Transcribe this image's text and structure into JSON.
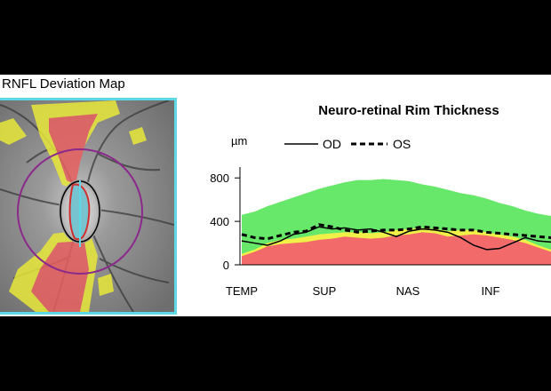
{
  "deviation_map": {
    "title": "RNFL Deviation Map"
  },
  "chart_data": {
    "type": "line",
    "title": "Neuro-retinal Rim Thickness",
    "ylabel": "µm",
    "ylim": [
      0,
      900
    ],
    "yticks": [
      0,
      400,
      800
    ],
    "xtick_labels": [
      "TEMP",
      "SUP",
      "NAS",
      "INF"
    ],
    "x": [
      0,
      15,
      30,
      45,
      60,
      75,
      90,
      105,
      120,
      135,
      150,
      165,
      180,
      195,
      210,
      225,
      240,
      255,
      270,
      285,
      300,
      315,
      330,
      345,
      360
    ],
    "normative_bands": {
      "red_upper": [
        80,
        120,
        170,
        190,
        200,
        210,
        230,
        240,
        260,
        250,
        240,
        250,
        270,
        280,
        300,
        290,
        260,
        270,
        280,
        270,
        250,
        230,
        200,
        160,
        120
      ],
      "yellow_upper": [
        100,
        140,
        200,
        230,
        240,
        260,
        280,
        290,
        300,
        300,
        290,
        300,
        320,
        330,
        340,
        330,
        310,
        320,
        320,
        300,
        280,
        260,
        230,
        180,
        140
      ],
      "green_upper": [
        460,
        490,
        540,
        580,
        620,
        660,
        700,
        730,
        760,
        780,
        780,
        790,
        780,
        770,
        740,
        720,
        690,
        660,
        640,
        610,
        570,
        540,
        500,
        470,
        450
      ]
    },
    "series": [
      {
        "name": "OD",
        "style": "solid",
        "values": [
          220,
          200,
          180,
          220,
          280,
          300,
          350,
          330,
          340,
          320,
          330,
          300,
          260,
          310,
          330,
          320,
          300,
          250,
          180,
          140,
          150,
          200,
          250,
          220,
          210
        ]
      },
      {
        "name": "OS",
        "style": "dashed",
        "values": [
          280,
          250,
          240,
          270,
          300,
          310,
          370,
          350,
          320,
          300,
          310,
          320,
          320,
          330,
          350,
          340,
          330,
          320,
          320,
          300,
          290,
          280,
          270,
          260,
          250
        ]
      }
    ],
    "colors": {
      "green": "#67e86a",
      "yellow": "#f0f048",
      "red": "#f26a6a",
      "od": "#000000",
      "os": "#000000"
    },
    "grid": false,
    "legend_position": "top"
  }
}
